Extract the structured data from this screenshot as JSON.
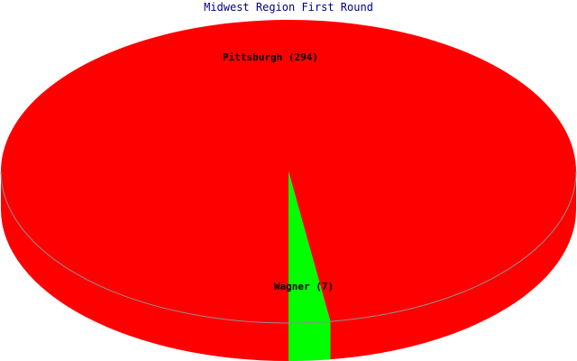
{
  "chart_data": {
    "type": "pie",
    "title": "Midwest Region First Round",
    "slices": [
      {
        "label": "Pittsburgh (294)",
        "name": "Pittsburgh",
        "value": 294,
        "color": "#ff0000"
      },
      {
        "label": "Wagner (7)",
        "name": "Wagner",
        "value": 7,
        "color": "#00ff00"
      }
    ],
    "three_d": true,
    "legend": "none"
  }
}
